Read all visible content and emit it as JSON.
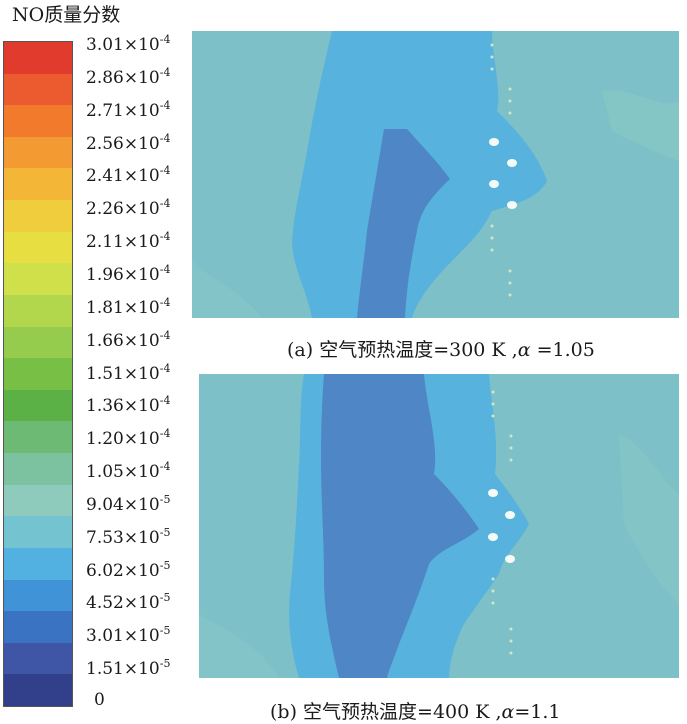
{
  "legend": {
    "title": "NO质量分数",
    "ticks": [
      {
        "mantissa": "3.01",
        "exp": "-4"
      },
      {
        "mantissa": "2.86",
        "exp": "-4"
      },
      {
        "mantissa": "2.71",
        "exp": "-4"
      },
      {
        "mantissa": "2.56",
        "exp": "-4"
      },
      {
        "mantissa": "2.41",
        "exp": "-4"
      },
      {
        "mantissa": "2.26",
        "exp": "-4"
      },
      {
        "mantissa": "2.11",
        "exp": "-4"
      },
      {
        "mantissa": "1.96",
        "exp": "-4"
      },
      {
        "mantissa": "1.81",
        "exp": "-4"
      },
      {
        "mantissa": "1.66",
        "exp": "-4"
      },
      {
        "mantissa": "1.51",
        "exp": "-4"
      },
      {
        "mantissa": "1.36",
        "exp": "-4"
      },
      {
        "mantissa": "1.20",
        "exp": "-4"
      },
      {
        "mantissa": "1.05",
        "exp": "-4"
      },
      {
        "mantissa": "9.04",
        "exp": "-5"
      },
      {
        "mantissa": "7.53",
        "exp": "-5"
      },
      {
        "mantissa": "6.02",
        "exp": "-5"
      },
      {
        "mantissa": "4.52",
        "exp": "-5"
      },
      {
        "mantissa": "3.01",
        "exp": "-5"
      },
      {
        "mantissa": "1.51",
        "exp": "-5"
      },
      {
        "mantissa": "0",
        "exp": ""
      }
    ],
    "colors": [
      "#e03b2c",
      "#ec5b2f",
      "#f27a2d",
      "#f49a32",
      "#f3b637",
      "#efcd3c",
      "#e7df41",
      "#cfe04a",
      "#b2d74d",
      "#96cc4d",
      "#77bf45",
      "#5bb146",
      "#6cba74",
      "#7cc2a1",
      "#8ecbbd",
      "#74c3d0",
      "#53b1e1",
      "#3f93d6",
      "#3b73c3",
      "#3e56a5",
      "#323f8b"
    ]
  },
  "panels": [
    {
      "caption": "(a)  空气预热温度=300 K ,",
      "alpha_symbol": "α",
      "alpha_value": " =1.05"
    },
    {
      "caption": "(b)  空气预热温度=400 K ,",
      "alpha_symbol": "α",
      "alpha_value": "=1.1"
    }
  ],
  "field_colors": {
    "outer": "#7ec0c8",
    "mid": "#58b2de",
    "core": "#4f86c6",
    "edge": "#86c7c6"
  }
}
